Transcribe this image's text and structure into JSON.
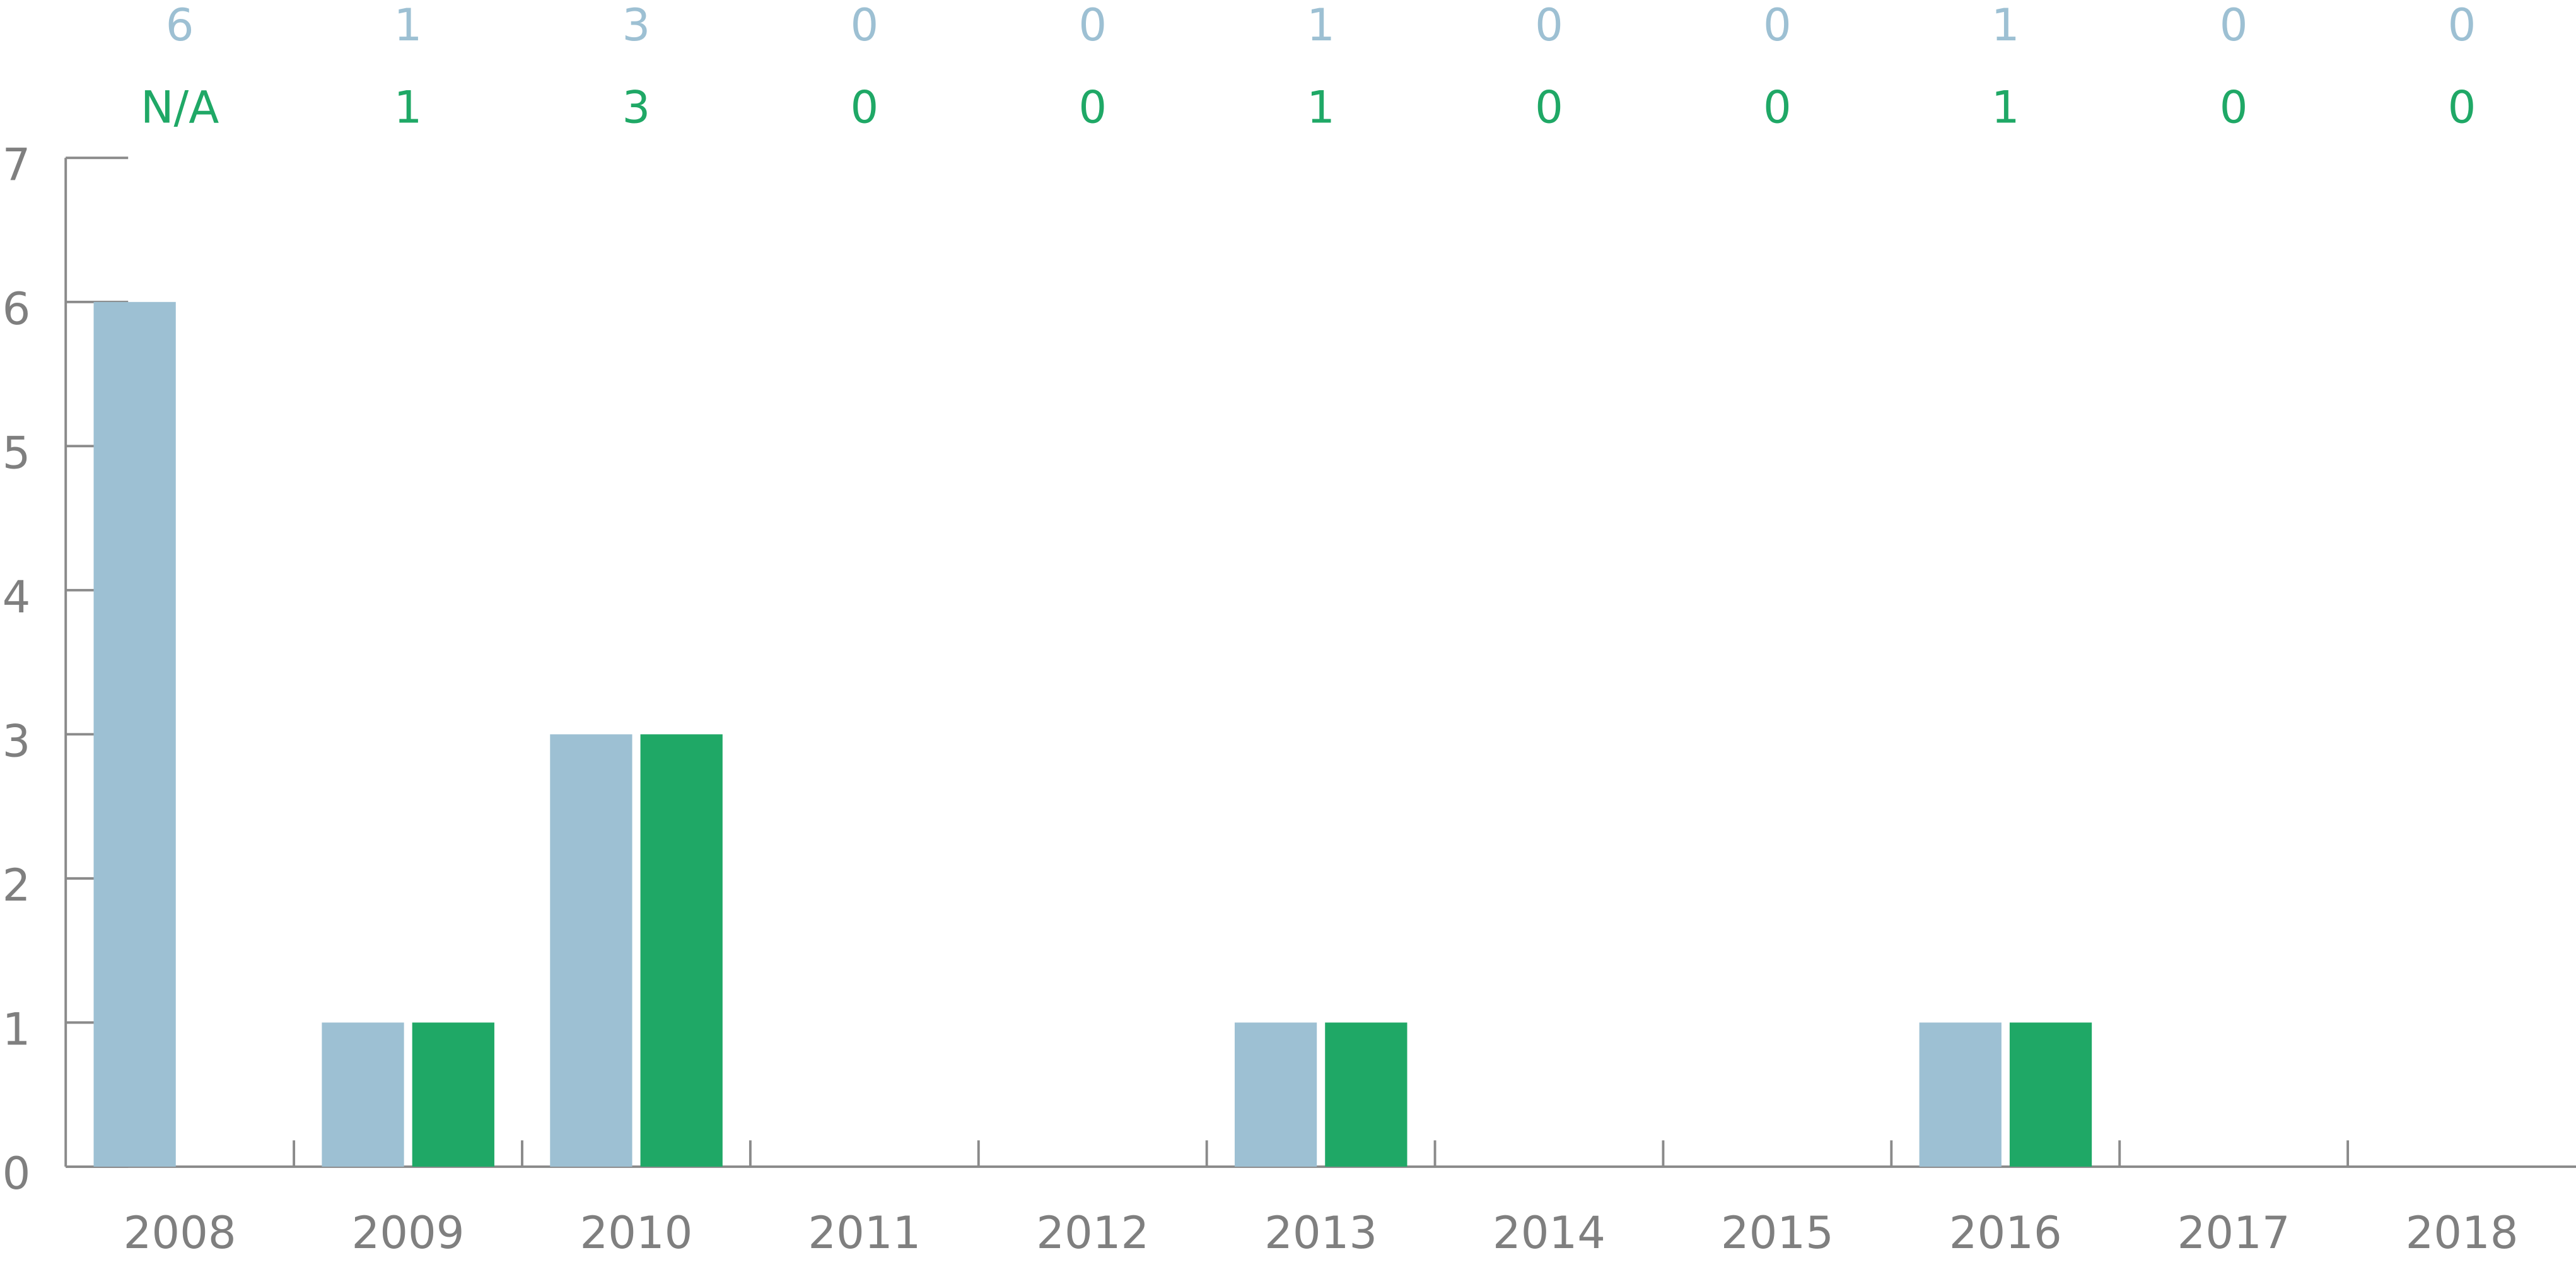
{
  "chart_data": {
    "type": "bar",
    "categories": [
      "2008",
      "2009",
      "2010",
      "2011",
      "2012",
      "2013",
      "2014",
      "2015",
      "2016",
      "2017",
      "2018"
    ],
    "series": [
      {
        "color": "#9dc0d3",
        "values": [
          6,
          1,
          3,
          0,
          0,
          1,
          0,
          0,
          1,
          0,
          0
        ]
      },
      {
        "color": "#1fa866",
        "values": [
          null,
          1,
          3,
          0,
          0,
          1,
          0,
          0,
          1,
          0,
          0
        ],
        "value_labels": [
          "N/A",
          "1",
          "3",
          "0",
          "0",
          "1",
          "0",
          "0",
          "1",
          "0",
          "0"
        ]
      }
    ],
    "ylim": [
      0,
      7
    ],
    "yticks": [
      0,
      1,
      2,
      3,
      4,
      5,
      6,
      7
    ],
    "grid": false
  }
}
